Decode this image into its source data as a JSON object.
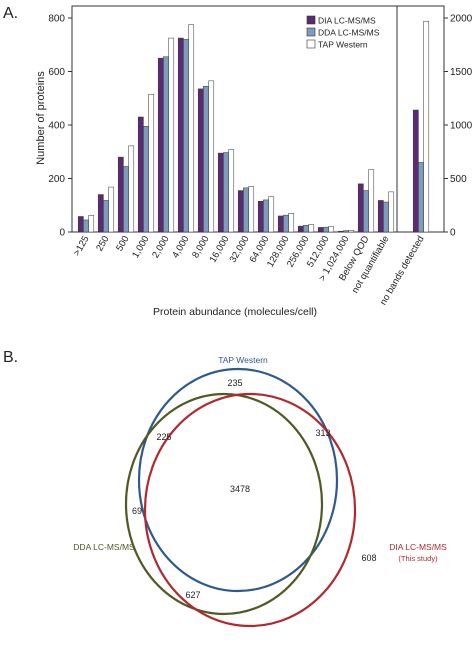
{
  "panel_a_label": "A.",
  "panel_b_label": "B.",
  "colors": {
    "dia": "#5b2a72",
    "dda": "#7e9cbc",
    "tap": "#ffffff"
  },
  "chart_data": [
    {
      "type": "bar",
      "xlabel": "Protein abundance (molecules/cell)",
      "ylabel": "Number of proteins",
      "ylim": [
        0,
        800
      ],
      "yticks": [
        "0",
        "200",
        "400",
        "600",
        "800"
      ],
      "categories": [
        ">125",
        "250",
        "500",
        "1,000",
        "2,000",
        "4,000",
        "8,000",
        "16,000",
        "32,000",
        "64,000",
        "128,000",
        "256,000",
        "512,000",
        "> 1,024,000",
        "Below QOD",
        "not quantifiable"
      ],
      "series": [
        {
          "name": "DIA LC-MS/MS",
          "color": "#5b2a72",
          "values": [
            58,
            140,
            280,
            430,
            650,
            725,
            535,
            295,
            155,
            115,
            60,
            22,
            17,
            3,
            180,
            118
          ]
        },
        {
          "name": "DDA LC-MS/MS",
          "color": "#7e9cbc",
          "values": [
            45,
            118,
            245,
            395,
            655,
            720,
            545,
            297,
            165,
            120,
            63,
            25,
            18,
            5,
            155,
            112
          ]
        },
        {
          "name": "TAP Western",
          "color": "#ffffff",
          "values": [
            62,
            168,
            322,
            515,
            725,
            775,
            565,
            308,
            170,
            132,
            70,
            28,
            20,
            6,
            233,
            150
          ]
        }
      ],
      "right_panel": {
        "category": "no bands detected",
        "ylim": [
          0,
          2000
        ],
        "yticks": [
          "0",
          "500",
          "1000",
          "1500",
          "2000"
        ],
        "values": {
          "DIA LC-MS/MS": 1140,
          "DDA LC-MS/MS": 650,
          "TAP Western": 1970
        }
      },
      "legend": {
        "placement": "top-right",
        "entries": [
          "DIA LC-MS/MS",
          "DDA LC-MS/MS",
          "TAP Western"
        ]
      }
    },
    {
      "type": "venn",
      "sets": [
        {
          "name": "TAP Western",
          "color": "#2f5a8c"
        },
        {
          "name": "DDA LC-MS/MS",
          "color": "#4f5a22"
        },
        {
          "name": "DIA LC-MS/MS",
          "subname": "(This study)",
          "color": "#b3282f"
        }
      ],
      "regions": [
        {
          "sets": [
            "TAP Western"
          ],
          "value": "235"
        },
        {
          "sets": [
            "TAP Western",
            "DDA LC-MS/MS"
          ],
          "value": "225"
        },
        {
          "sets": [
            "TAP Western",
            "DIA LC-MS/MS"
          ],
          "value": "313"
        },
        {
          "sets": [
            "DDA LC-MS/MS"
          ],
          "value": "69"
        },
        {
          "sets": [
            "TAP Western",
            "DDA LC-MS/MS",
            "DIA LC-MS/MS"
          ],
          "value": "3478"
        },
        {
          "sets": [
            "DIA LC-MS/MS"
          ],
          "value": "608"
        },
        {
          "sets": [
            "DDA LC-MS/MS",
            "DIA LC-MS/MS"
          ],
          "value": "627"
        }
      ]
    }
  ]
}
